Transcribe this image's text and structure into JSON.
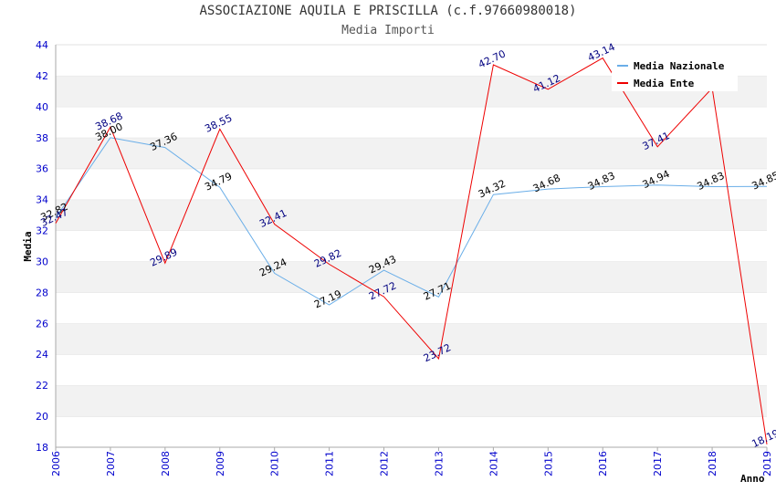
{
  "chart_data": {
    "type": "line",
    "title": "ASSOCIAZIONE AQUILA E PRISCILLA (c.f.97660980018)",
    "subtitle": "Media Importi",
    "xlabel": "Anno",
    "ylabel": "Media",
    "x": [
      "2006",
      "2007",
      "2008",
      "2009",
      "2010",
      "2011",
      "2012",
      "2013",
      "2014",
      "2015",
      "2016",
      "2017",
      "2018",
      "2019"
    ],
    "ylim": [
      18,
      44
    ],
    "yticks": [
      18,
      20,
      22,
      24,
      26,
      28,
      30,
      32,
      34,
      36,
      38,
      40,
      42,
      44
    ],
    "grid": "horizontal alternating bands",
    "legend_position": "top-right",
    "series": [
      {
        "name": "Media Nazionale",
        "color": "#6aaee8",
        "label_color": "#000000",
        "values": [
          32.82,
          38.0,
          37.36,
          34.79,
          29.24,
          27.19,
          29.43,
          27.71,
          34.32,
          34.68,
          34.83,
          34.94,
          34.83,
          34.85
        ],
        "labels": [
          "32.82",
          "38.00",
          "37.36",
          "34.79",
          "29.24",
          "27.19",
          "29.43",
          "27.71",
          "34.32",
          "34.68",
          "34.83",
          "34.94",
          "34.83",
          "34.85"
        ]
      },
      {
        "name": "Media Ente",
        "color": "#ee0000",
        "label_color": "#000080",
        "values": [
          32.47,
          38.68,
          29.89,
          38.55,
          32.41,
          29.82,
          27.72,
          23.72,
          42.7,
          41.12,
          43.14,
          37.41,
          41.2,
          18.19
        ],
        "labels": [
          "32.47",
          "38.68",
          "29.89",
          "38.55",
          "32.41",
          "29.82",
          "27.72",
          "23.72",
          "42.70",
          "41.12",
          "43.14",
          "37.41",
          "",
          "18.19"
        ]
      }
    ]
  }
}
